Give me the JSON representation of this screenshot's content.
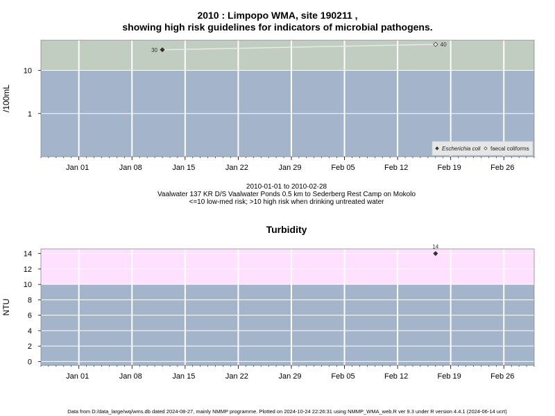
{
  "title_line1": "2010 : Limpopo WMA, site 190211 ,",
  "title_line2": "showing high risk guidelines for indicators of microbial pathogens.",
  "subtitle_line1": "2010-01-01 to 2010-02-28",
  "subtitle_line2": "Vaalwater 137 KR D/S Vaalwater Ponds 0.5 km to Sederberg Rest Camp on Mokolo",
  "subtitle_line3": "<=10 low-med risk; >10 high risk when drinking untreated water",
  "footer": "Data from D:/data_large/wq/wms.db dated 2024-08-27, mainly NMMP programme. Plotted on 2024-10-24 22:26:31 using NMMP_WMA_web.R ver 9.3 under R version 4.4.1 (2024-06-14 ucrt)",
  "colors": {
    "low_risk_band": "#a3b4cb",
    "high_risk_band_micro": "#c1cdc1",
    "high_risk_band_turbidity": "#ffe1ff",
    "grid": "#ffffff",
    "point": "#333333"
  },
  "chart_data": [
    {
      "type": "line",
      "ylabel": "/100mL",
      "xlabel": "",
      "y_scale": "log",
      "ylim": [
        0.1,
        50
      ],
      "xlim": [
        "2009-12-27",
        "2010-03-02"
      ],
      "x_ticks": [
        "2010-01-01",
        "2010-01-08",
        "2010-01-15",
        "2010-01-22",
        "2010-01-29",
        "2010-02-05",
        "2010-02-12",
        "2010-02-19",
        "2010-02-26"
      ],
      "x_tick_labels": [
        "Jan 01",
        "Jan 08",
        "Jan 15",
        "Jan 22",
        "Jan 29",
        "Feb 05",
        "Feb 12",
        "Feb 19",
        "Feb 26"
      ],
      "y_ticks": [
        1,
        10
      ],
      "y_tick_labels": [
        "1",
        "10"
      ],
      "threshold": 10,
      "legend_position": "bottom-right",
      "series": [
        {
          "name": "Escherichia coli",
          "marker": "filled-diamond",
          "x": [
            "2010-01-12"
          ],
          "y": [
            30
          ],
          "labels": [
            "30"
          ]
        },
        {
          "name": "faecal coliforms",
          "marker": "open-diamond",
          "x": [
            "2010-02-17"
          ],
          "y": [
            40
          ],
          "labels": [
            "40"
          ]
        }
      ]
    },
    {
      "type": "scatter",
      "title": "Turbidity",
      "ylabel": "NTU",
      "xlabel": "",
      "ylim": [
        -0.5,
        14.6
      ],
      "xlim": [
        "2009-12-27",
        "2010-03-02"
      ],
      "x_ticks": [
        "2010-01-01",
        "2010-01-08",
        "2010-01-15",
        "2010-01-22",
        "2010-01-29",
        "2010-02-05",
        "2010-02-12",
        "2010-02-19",
        "2010-02-26"
      ],
      "x_tick_labels": [
        "Jan 01",
        "Jan 08",
        "Jan 15",
        "Jan 22",
        "Jan 29",
        "Feb 05",
        "Feb 12",
        "Feb 19",
        "Feb 26"
      ],
      "y_ticks": [
        0,
        2,
        4,
        6,
        8,
        10,
        12,
        14
      ],
      "y_tick_labels": [
        "0",
        "2",
        "4",
        "6",
        "8",
        "10",
        "12",
        "14"
      ],
      "threshold": 10,
      "series": [
        {
          "name": "",
          "marker": "filled-diamond",
          "x": [
            "2010-02-17"
          ],
          "y": [
            14
          ],
          "labels": [
            "14"
          ]
        }
      ]
    }
  ]
}
